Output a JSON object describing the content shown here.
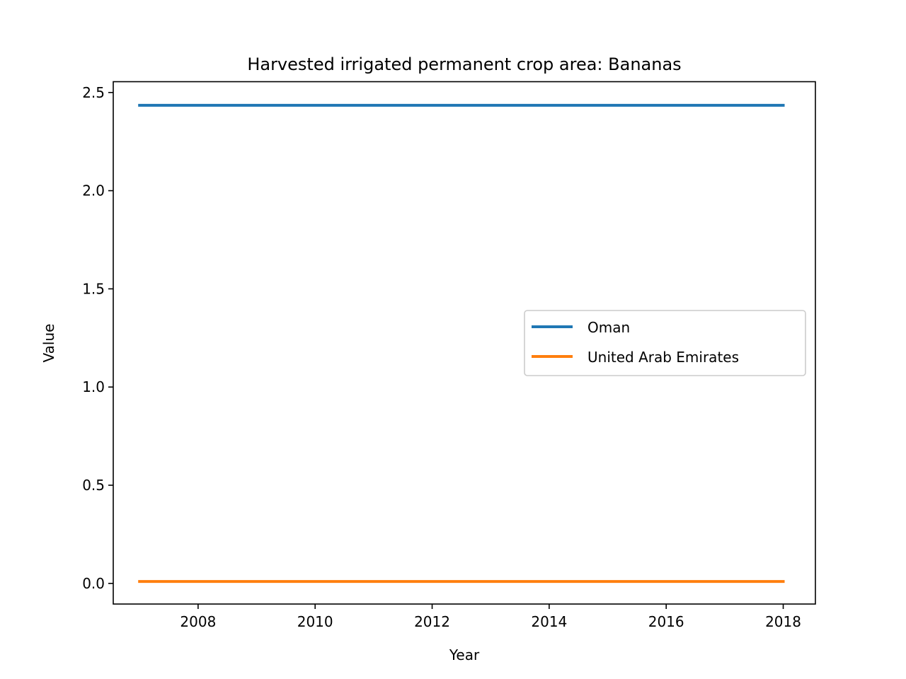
{
  "chart_data": {
    "type": "line",
    "title": "Harvested irrigated permanent crop area: Bananas",
    "xlabel": "Year",
    "ylabel": "Value",
    "x": [
      2007,
      2008,
      2009,
      2010,
      2011,
      2012,
      2013,
      2014,
      2015,
      2016,
      2017,
      2018
    ],
    "xlim": [
      2006.55,
      2018.55
    ],
    "ylim": [
      -0.105,
      2.555
    ],
    "xticks": [
      2008,
      2010,
      2012,
      2014,
      2016,
      2018
    ],
    "xtick_labels": [
      "2008",
      "2010",
      "2012",
      "2014",
      "2016",
      "2018"
    ],
    "yticks": [
      0.0,
      0.5,
      1.0,
      1.5,
      2.0,
      2.5
    ],
    "ytick_labels": [
      "0.0",
      "0.5",
      "1.0",
      "1.5",
      "2.0",
      "2.5"
    ],
    "grid": false,
    "legend": {
      "placement": "center-right"
    },
    "series": [
      {
        "name": "Oman",
        "color": "#1f77b4",
        "values": [
          2.435,
          2.435,
          2.435,
          2.435,
          2.435,
          2.435,
          2.435,
          2.435,
          2.435,
          2.435,
          2.435,
          2.435
        ]
      },
      {
        "name": "United Arab Emirates",
        "color": "#ff7f0e",
        "values": [
          0.01,
          0.01,
          0.01,
          0.01,
          0.01,
          0.01,
          0.01,
          0.01,
          0.01,
          0.01,
          0.01,
          0.01
        ]
      }
    ]
  }
}
